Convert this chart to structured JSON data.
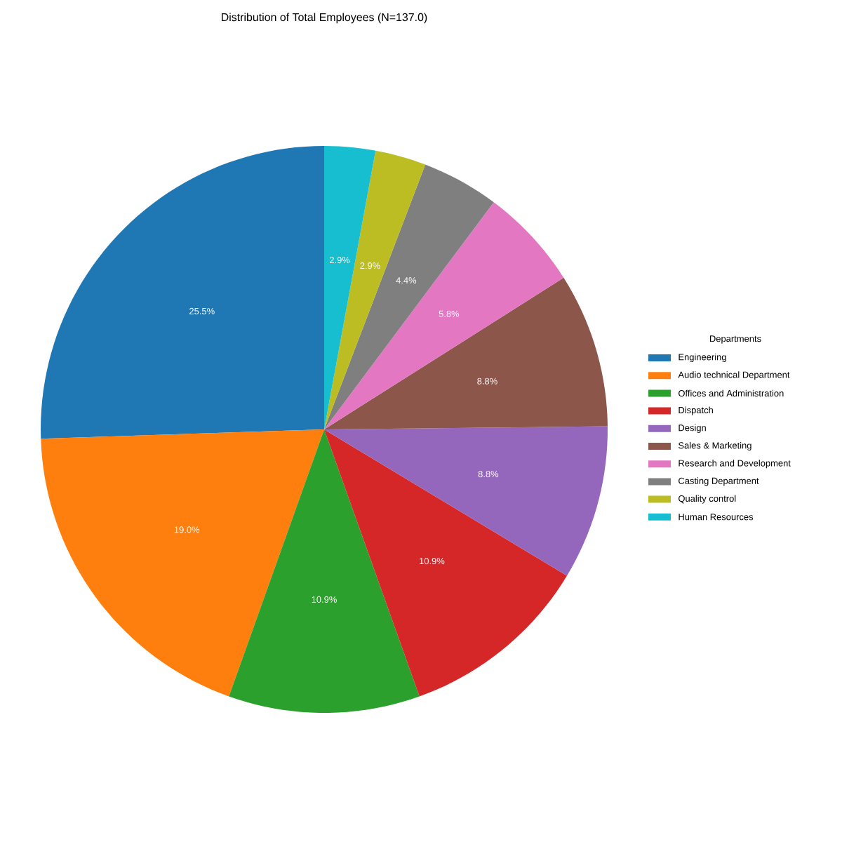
{
  "chart_data": {
    "type": "pie",
    "title": "Distribution of Total Employees (N=137.0)",
    "legend_title": "Departments",
    "legend": "right",
    "categories": [
      "Engineering",
      "Audio technical Department",
      "Offices and Administration",
      "Dispatch",
      "Design",
      "Sales & Marketing",
      "Research and Development",
      "Casting Department",
      "Quality control",
      "Human Resources"
    ],
    "values": [
      25.5,
      19.0,
      10.9,
      10.9,
      8.8,
      8.8,
      5.8,
      4.4,
      2.9,
      2.9
    ],
    "value_labels": [
      "25.5%",
      "19.0%",
      "10.9%",
      "10.9%",
      "8.8%",
      "8.8%",
      "5.8%",
      "4.4%",
      "2.9%",
      "2.9%"
    ],
    "colors": [
      "#1f77b4",
      "#ff7f0e",
      "#2ca02c",
      "#d62728",
      "#9467bd",
      "#8c564b",
      "#e377c2",
      "#7f7f7f",
      "#bcbd22",
      "#17becf"
    ]
  }
}
